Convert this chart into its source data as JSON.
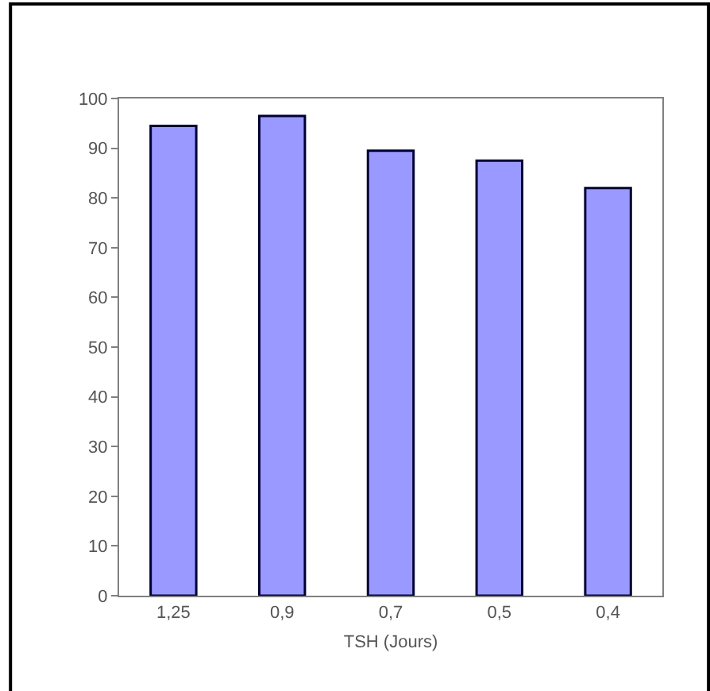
{
  "chart_data": {
    "type": "bar",
    "xlabel": "TSH (Jours)",
    "categories": [
      "1,25",
      "0,9",
      "0,7",
      "0,5",
      "0,4"
    ],
    "values": [
      94.5,
      96.5,
      89.5,
      87.5,
      82
    ],
    "color": "#9999ff",
    "ylim": [
      0,
      100
    ],
    "yticks": [
      0,
      10,
      20,
      30,
      40,
      50,
      60,
      70,
      80,
      90,
      100
    ]
  }
}
